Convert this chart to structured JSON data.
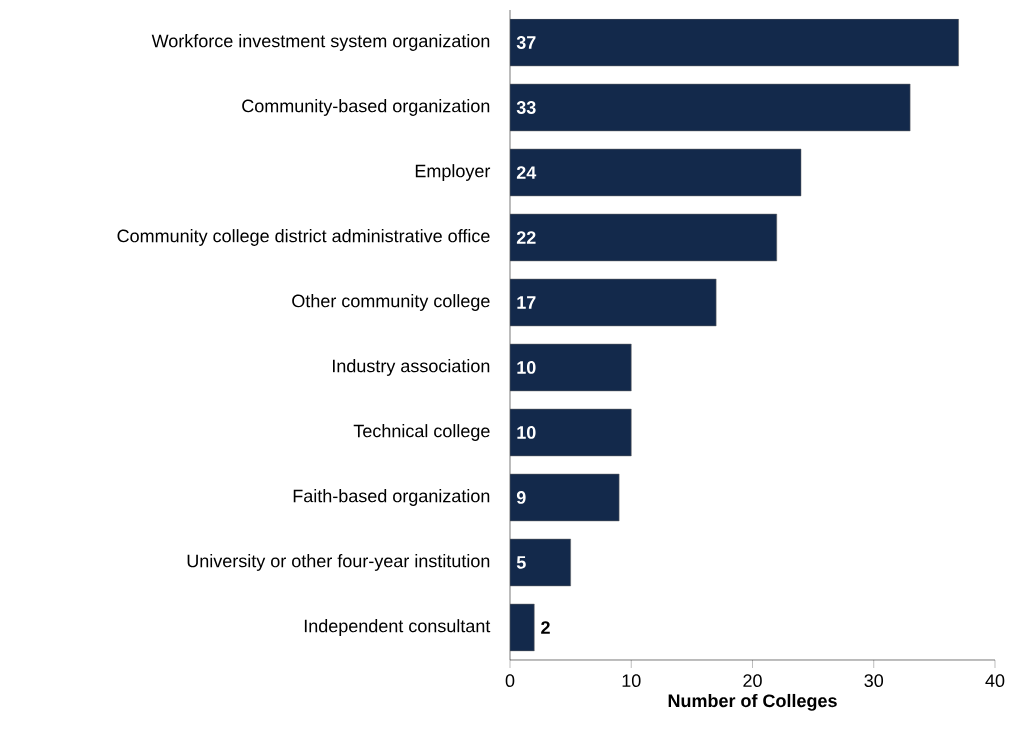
{
  "chart_data": {
    "type": "bar",
    "orientation": "horizontal",
    "xlabel": "**Number of Colleges**",
    "categories": [
      "Workforce investment system organization",
      "Community-based organization",
      "Employer",
      "Community college district administrative office",
      "Other community college",
      "Industry association",
      "Technical college",
      "Faith-based organization",
      "University or other four-year institution",
      "Independent consultant"
    ],
    "values": [
      37,
      33,
      24,
      22,
      17,
      10,
      10,
      9,
      5,
      2
    ],
    "color": "#13294b",
    "xlim": [
      0,
      40
    ],
    "xticks": [
      0,
      10,
      20,
      30,
      40
    ],
    "data_labels": true
  }
}
